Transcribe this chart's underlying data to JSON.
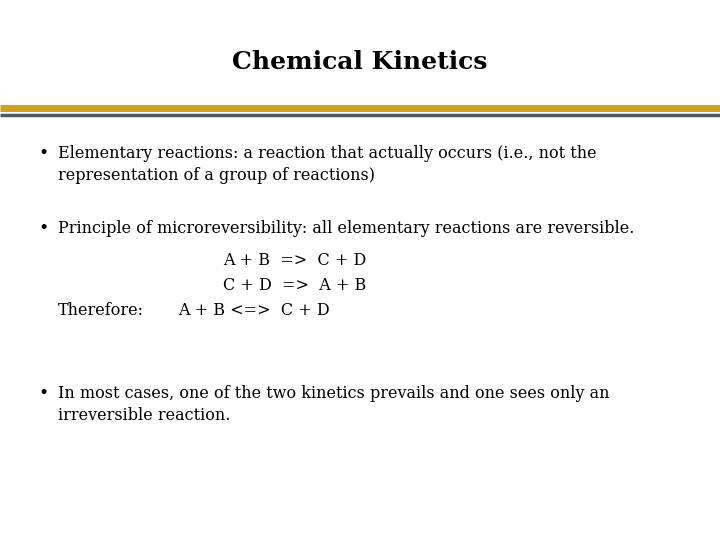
{
  "title": "Chemical Kinetics",
  "title_fontsize": 18,
  "title_fontweight": "bold",
  "title_font": "serif",
  "background_color": "#ffffff",
  "line_gold_color": "#c9a227",
  "line_dark_color": "#4a5a6a",
  "bullet1_line1": "Elementary reactions: a reaction that actually occurs (i.e., not the",
  "bullet1_line2": "representation of a group of reactions)",
  "bullet2_line1": "Principle of microreversibility: all elementary reactions are reversible.",
  "reaction1": "A + B  =>  C + D",
  "reaction2": "C + D  =>  A + B",
  "therefore_label": "Therefore:",
  "therefore_eq": "A + B <=>  C + D",
  "bullet3_line1": "In most cases, one of the two kinetics prevails and one sees only an",
  "bullet3_line2": "irreversible reaction.",
  "text_color": "#000000",
  "body_fontsize": 11.5,
  "body_font": "serif"
}
